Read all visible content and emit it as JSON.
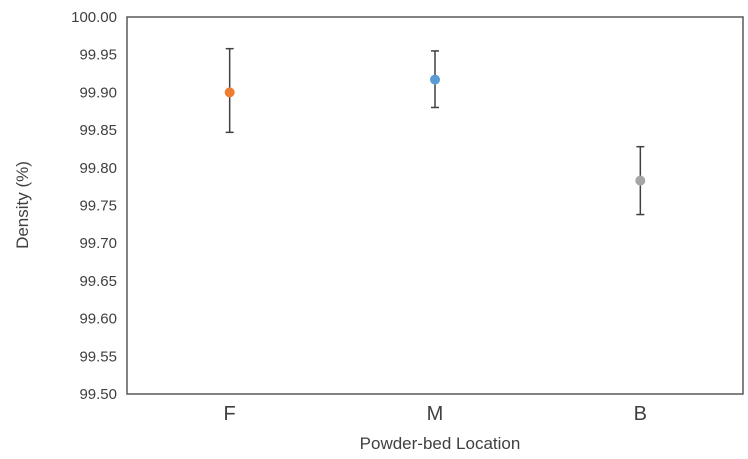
{
  "chart_data": {
    "type": "scatter",
    "title": "",
    "xlabel": "Powder-bed Location",
    "ylabel": "Density (%)",
    "categories": [
      "F",
      "M",
      "B"
    ],
    "values": [
      99.9,
      99.917,
      99.783
    ],
    "error_low": [
      99.847,
      99.88,
      99.738
    ],
    "error_high": [
      99.958,
      99.955,
      99.828
    ],
    "point_colors": [
      "#ED7D31",
      "#5B9BD5",
      "#A5A5A5"
    ],
    "ylim": [
      99.5,
      100.0
    ],
    "yticks": [
      "99.50",
      "99.55",
      "99.60",
      "99.65",
      "99.70",
      "99.75",
      "99.80",
      "99.85",
      "99.90",
      "99.95",
      "100.00"
    ],
    "grid": false,
    "legend": "none"
  }
}
